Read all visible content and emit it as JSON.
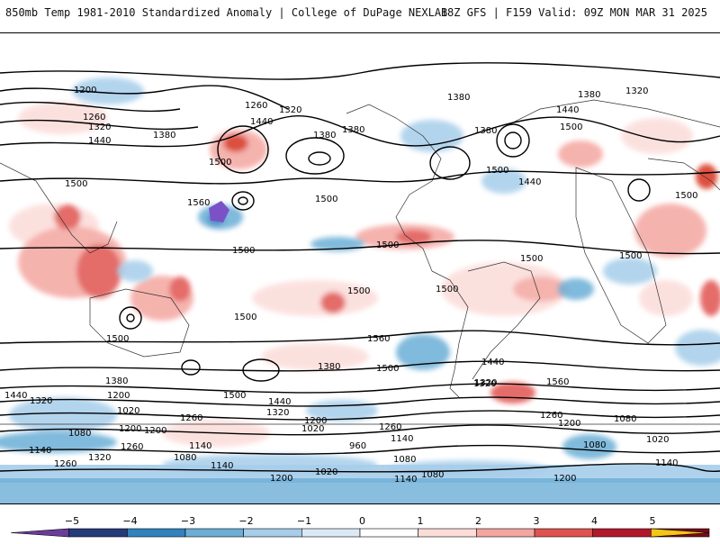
{
  "header": {
    "title": "850mb Temp 1981-2010 Standardized Anomaly | College of DuPage NEXLAB",
    "run_info": "18Z GFS | F159 Valid: 09Z MON MAR 31 2025"
  },
  "map": {
    "contour_labels": [
      "1200",
      "1260",
      "1320",
      "1440",
      "1380",
      "1260",
      "1320",
      "1380",
      "1500",
      "1380",
      "1380",
      "1440",
      "1380",
      "1320",
      "1380",
      "1440",
      "1500",
      "1500",
      "1500",
      "1440",
      "1500",
      "1560",
      "1500",
      "1500",
      "1500",
      "1500",
      "1500",
      "1500",
      "1500",
      "1500",
      "1500",
      "1560",
      "1500",
      "1440",
      "1560",
      "1380",
      "1440",
      "1320",
      "1500",
      "1320",
      "1380",
      "1200",
      "1440",
      "1320",
      "1200",
      "1020",
      "1260",
      "1320",
      "1200",
      "1260",
      "1200",
      "1260",
      "1020",
      "1140",
      "1200",
      "1080",
      "1080",
      "1020",
      "1140",
      "1260",
      "1080",
      "960",
      "1140",
      "1080",
      "1080",
      "1140",
      "1320",
      "1140",
      "1260",
      "1200",
      "1020",
      "1140",
      "1080",
      "1200"
    ]
  },
  "colorbar": {
    "ticks": [
      "−5",
      "−4",
      "−3",
      "−2",
      "−1",
      "0",
      "1",
      "2",
      "3",
      "4",
      "5"
    ],
    "colors": [
      "#6a3d9a",
      "#253b7a",
      "#3182bd",
      "#6baed6",
      "#a6cdea",
      "#dbe9f6",
      "#ffffff",
      "#fbdcd9",
      "#f4a6a0",
      "#e0524f",
      "#b2182b",
      "#7a0a1a",
      "#f5c518"
    ]
  }
}
